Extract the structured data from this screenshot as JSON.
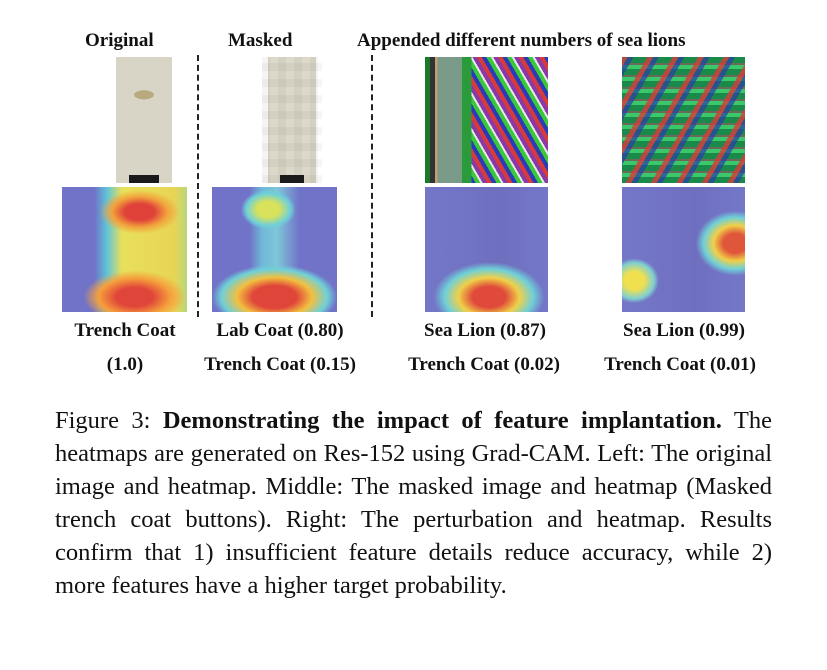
{
  "headers": {
    "original": "Original",
    "masked": "Masked",
    "appended": "Appended different numbers of sea lions"
  },
  "labels": [
    {
      "line1": "Trench Coat",
      "line2": "(1.0)"
    },
    {
      "line1": "Lab Coat (0.80)",
      "line2": "Trench Coat (0.15)"
    },
    {
      "line1": "Sea Lion (0.87)",
      "line2": "Trench Coat (0.02)"
    },
    {
      "line1": "Sea Lion (0.99)",
      "line2": "Trench Coat (0.01)"
    }
  ],
  "caption": {
    "prefix": "Figure 3: ",
    "bold": "Demonstrating the impact of feature implantation.",
    "body": " The heatmaps are generated on Res-152 using Grad-CAM. Left: The original image and heatmap. Middle: The masked image and heatmap (Masked trench coat buttons). Right: The perturbation and heatmap. Results confirm that 1) insufficient feature details reduce accuracy, while 2) more features have a higher target probability."
  }
}
